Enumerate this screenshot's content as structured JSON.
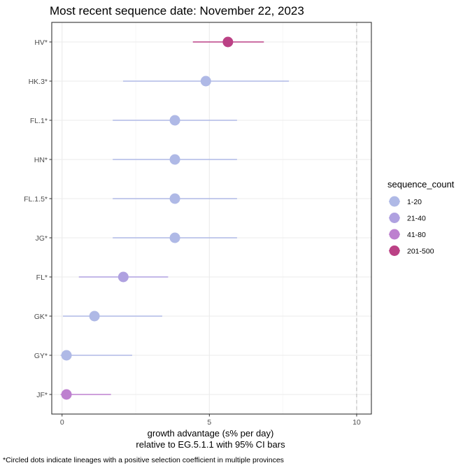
{
  "chart_data": {
    "type": "scatter",
    "title": "Most recent sequence date: November 22, 2023",
    "xlabel_line1": "growth advantage (s% per day)",
    "xlabel_line2": "relative to  EG.5.1.1  with 95% CI bars",
    "xlim": [
      -0.35,
      10.5
    ],
    "xticks": [
      0,
      5,
      10
    ],
    "xtick_labels": [
      "0",
      "5",
      "10"
    ],
    "reference_line_x": 10,
    "grid": true,
    "legend": {
      "title": "sequence_count",
      "placement": "right",
      "entries": [
        {
          "label": "1-20",
          "color": "#AFB9E6"
        },
        {
          "label": "21-40",
          "color": "#AFA1E0"
        },
        {
          "label": "41-80",
          "color": "#BD80CF"
        },
        {
          "label": "201-500",
          "color": "#BB4185"
        }
      ]
    },
    "points": [
      {
        "lineage": "HV*",
        "value": 5.63,
        "ci_low": 4.44,
        "ci_high": 6.85,
        "count_bin": "201-500"
      },
      {
        "lineage": "HK.3*",
        "value": 4.88,
        "ci_low": 2.07,
        "ci_high": 7.7,
        "count_bin": "1-20"
      },
      {
        "lineage": "FL.1*",
        "value": 3.83,
        "ci_low": 1.72,
        "ci_high": 5.94,
        "count_bin": "1-20"
      },
      {
        "lineage": "HN*",
        "value": 3.83,
        "ci_low": 1.72,
        "ci_high": 5.94,
        "count_bin": "1-20"
      },
      {
        "lineage": "FL.1.5*",
        "value": 3.83,
        "ci_low": 1.72,
        "ci_high": 5.94,
        "count_bin": "1-20"
      },
      {
        "lineage": "JG*",
        "value": 3.83,
        "ci_low": 1.72,
        "ci_high": 5.94,
        "count_bin": "1-20"
      },
      {
        "lineage": "FL*",
        "value": 2.08,
        "ci_low": 0.57,
        "ci_high": 3.6,
        "count_bin": "21-40"
      },
      {
        "lineage": "GK*",
        "value": 1.1,
        "ci_low": 0.03,
        "ci_high": 3.4,
        "count_bin": "1-20"
      },
      {
        "lineage": "GY*",
        "value": 0.15,
        "ci_low": -0.05,
        "ci_high": 2.38,
        "count_bin": "1-20"
      },
      {
        "lineage": "JF*",
        "value": 0.15,
        "ci_low": -0.05,
        "ci_high": 1.66,
        "count_bin": "41-80"
      }
    ]
  },
  "footnote": "*Circled dots indicate lineages with a positive selection coefficient in multiple provinces"
}
